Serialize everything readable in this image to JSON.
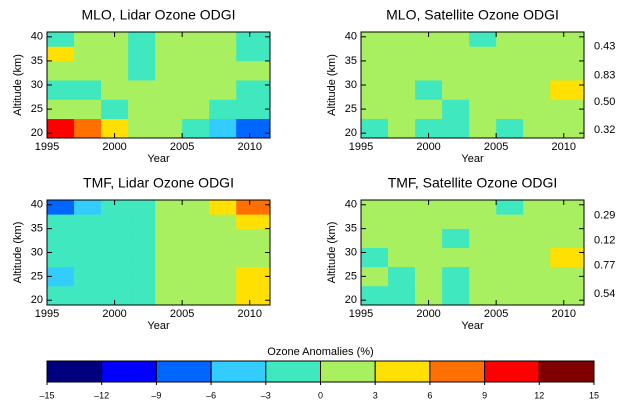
{
  "chart_data": [
    {
      "type": "heatmap",
      "title": "MLO, Lidar Ozone ODGI",
      "xlabel": "Year",
      "ylabel": "Altitude (km)",
      "xlim": [
        1995,
        2011.5
      ],
      "ylim": [
        19,
        41
      ],
      "xticks": [
        1995,
        2000,
        2005,
        2010
      ],
      "yticks": [
        20,
        25,
        30,
        35,
        40
      ],
      "x_bins": [
        1995,
        1997,
        1999,
        2001,
        2003,
        2005,
        2007,
        2009,
        2011.5
      ],
      "y_bins": [
        19,
        23,
        27,
        31,
        35,
        38,
        41
      ],
      "z": [
        [
          10,
          8,
          4,
          1,
          0,
          -2,
          -4,
          -9
        ],
        [
          2,
          1,
          -1,
          0,
          1,
          0,
          -1,
          -2
        ],
        [
          -2,
          -1,
          0,
          1,
          2,
          1,
          0,
          -1
        ],
        [
          1,
          2,
          0,
          -1,
          1,
          2,
          1,
          0
        ],
        [
          3,
          2,
          1,
          -1,
          2,
          1,
          0,
          -2
        ],
        [
          -1,
          1,
          0,
          -2,
          1,
          2,
          0,
          -3
        ]
      ]
    },
    {
      "type": "heatmap",
      "title": "MLO, Satellite Ozone ODGI",
      "xlabel": "Year",
      "ylabel": "Altitude (km)",
      "xlim": [
        1995,
        2011.5
      ],
      "ylim": [
        19,
        41
      ],
      "xticks": [
        1995,
        2000,
        2005,
        2010
      ],
      "yticks": [
        20,
        25,
        30,
        35,
        40
      ],
      "x_bins": [
        1995,
        1997,
        1999,
        2001,
        2003,
        2005,
        2007,
        2009,
        2011.5
      ],
      "y_bins": [
        19,
        23,
        27,
        31,
        35,
        38,
        41
      ],
      "z": [
        [
          -1,
          0,
          -2,
          -1,
          0,
          -1,
          0,
          1
        ],
        [
          1,
          0,
          1,
          -1,
          0,
          1,
          0,
          2
        ],
        [
          0,
          1,
          -1,
          0,
          1,
          0,
          1,
          3
        ],
        [
          1,
          0,
          1,
          0,
          1,
          1,
          0,
          1
        ],
        [
          1,
          1,
          0,
          1,
          0,
          1,
          1,
          0
        ],
        [
          0,
          1,
          1,
          0,
          -1,
          0,
          1,
          0
        ]
      ],
      "annotations": [
        {
          "y": 38,
          "text": "0.43"
        },
        {
          "y": 32,
          "text": "0.83"
        },
        {
          "y": 26.5,
          "text": "0.50"
        },
        {
          "y": 20.6,
          "text": "0.32"
        }
      ]
    },
    {
      "type": "heatmap",
      "title": "TMF, Lidar Ozone ODGI",
      "xlabel": "Year",
      "ylabel": "Altitude (km)",
      "xlim": [
        1995,
        2011.5
      ],
      "ylim": [
        19,
        41
      ],
      "xticks": [
        1995,
        2000,
        2005,
        2010
      ],
      "yticks": [
        20,
        25,
        30,
        35,
        40
      ],
      "x_bins": [
        1995,
        1997,
        1999,
        2001,
        2003,
        2005,
        2007,
        2009,
        2011.5
      ],
      "y_bins": [
        19,
        23,
        27,
        31,
        35,
        38,
        41
      ],
      "z": [
        [
          -2,
          -1,
          -2,
          -1,
          1,
          1,
          2,
          4
        ],
        [
          -4,
          -3,
          -2,
          -1,
          1,
          1,
          2,
          5
        ],
        [
          -2,
          -1,
          -1,
          -2,
          1,
          0,
          1,
          2
        ],
        [
          -1,
          -2,
          -1,
          -2,
          1,
          1,
          2,
          1
        ],
        [
          -3,
          -2,
          -1,
          -2,
          1,
          1,
          2,
          3
        ],
        [
          -7,
          -5,
          -3,
          -2,
          1,
          2,
          4,
          6
        ]
      ]
    },
    {
      "type": "heatmap",
      "title": "TMF, Satellite Ozone ODGI",
      "xlabel": "Year",
      "ylabel": "Altitude (km)",
      "xlim": [
        1995,
        2011.5
      ],
      "ylim": [
        19,
        41
      ],
      "xticks": [
        1995,
        2000,
        2005,
        2010
      ],
      "yticks": [
        20,
        25,
        30,
        35,
        40
      ],
      "x_bins": [
        1995,
        1997,
        1999,
        2001,
        2003,
        2005,
        2007,
        2009,
        2011.5
      ],
      "y_bins": [
        19,
        23,
        27,
        31,
        35,
        38,
        41
      ],
      "z": [
        [
          -2,
          -1,
          0,
          -1,
          0,
          0,
          1,
          2
        ],
        [
          0,
          -1,
          0,
          -1,
          1,
          0,
          1,
          2
        ],
        [
          -1,
          0,
          1,
          0,
          1,
          1,
          2,
          3
        ],
        [
          0,
          1,
          0,
          -1,
          1,
          1,
          0,
          1
        ],
        [
          1,
          0,
          1,
          0,
          0,
          1,
          1,
          2
        ],
        [
          0,
          1,
          0,
          1,
          0,
          -1,
          1,
          0
        ]
      ],
      "annotations": [
        {
          "y": 37.7,
          "text": "0.29"
        },
        {
          "y": 32.5,
          "text": "0.12"
        },
        {
          "y": 27.3,
          "text": "0.77"
        },
        {
          "y": 21.3,
          "text": "0.54"
        }
      ]
    }
  ],
  "colorbar": {
    "title": "Ozone Anomalies (%)",
    "bounds": [
      -15,
      -12,
      -9,
      -6,
      -3,
      0,
      3,
      6,
      9,
      12,
      15
    ],
    "colors": [
      "#00007f",
      "#0000ff",
      "#0066ff",
      "#33ccff",
      "#40e8c0",
      "#a8f060",
      "#ffe000",
      "#ff7000",
      "#ff0000",
      "#800000"
    ],
    "ticks": [
      {
        "value": -15,
        "label": "–15"
      },
      {
        "value": -12,
        "label": "–12"
      },
      {
        "value": -9,
        "label": "–9"
      },
      {
        "value": -6,
        "label": "–6"
      },
      {
        "value": -3,
        "label": "–3"
      },
      0,
      3,
      6,
      9,
      12,
      15
    ]
  }
}
